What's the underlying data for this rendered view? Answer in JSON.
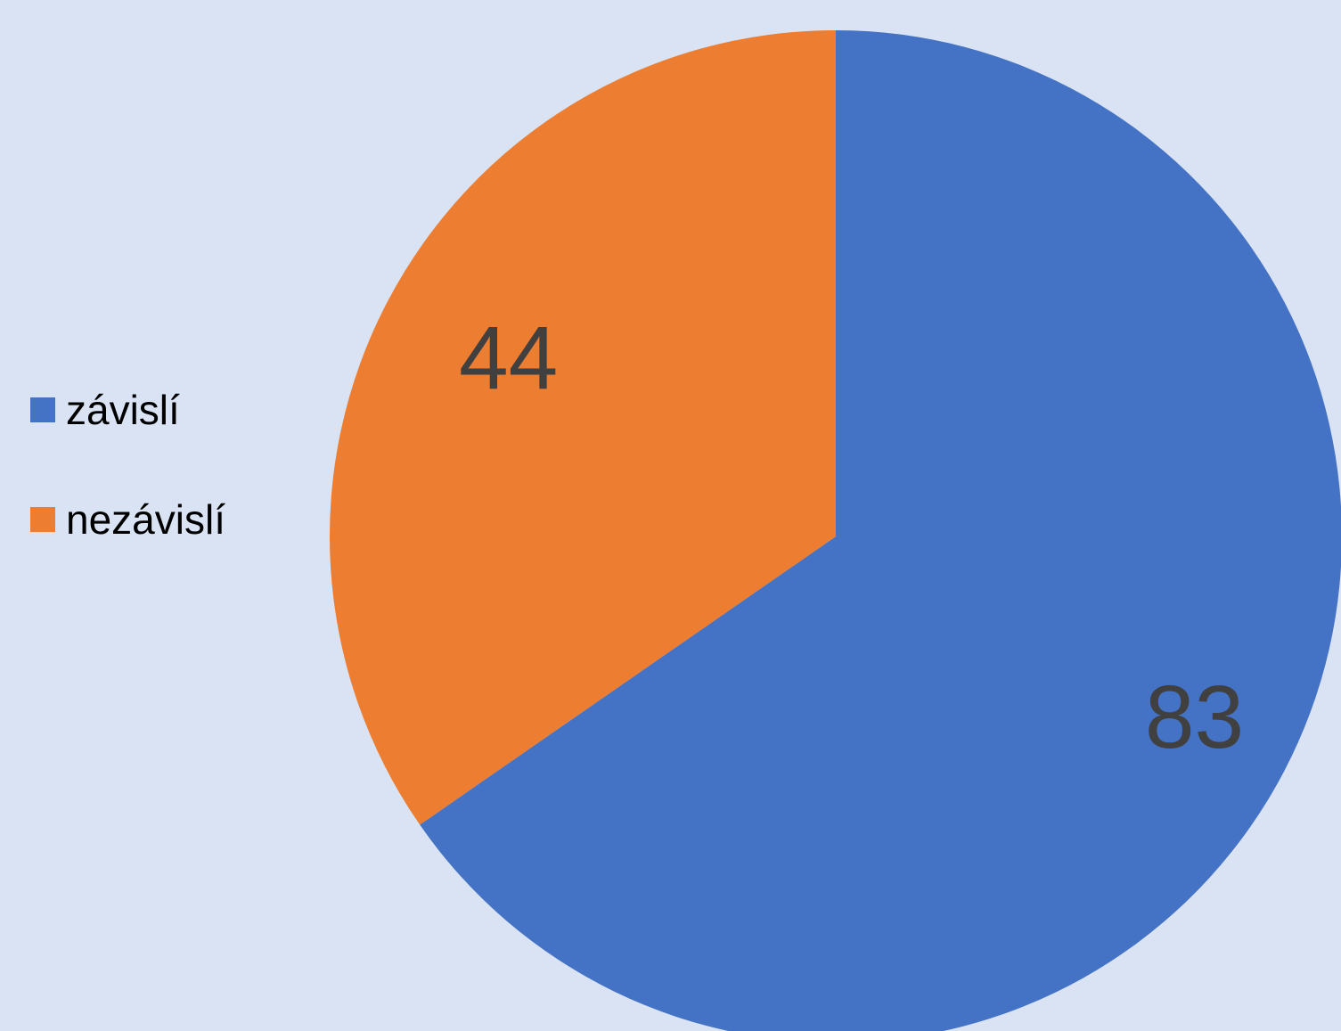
{
  "chart_data": {
    "type": "pie",
    "categories": [
      "závislí",
      "nezávislí"
    ],
    "values": [
      83,
      44
    ],
    "colors": [
      "#4472c4",
      "#ed7d31"
    ],
    "data_labels": [
      "83",
      "44"
    ],
    "start_angle_deg": 0,
    "direction": "clockwise",
    "legend_position": "left",
    "background": "#dae3f3"
  }
}
